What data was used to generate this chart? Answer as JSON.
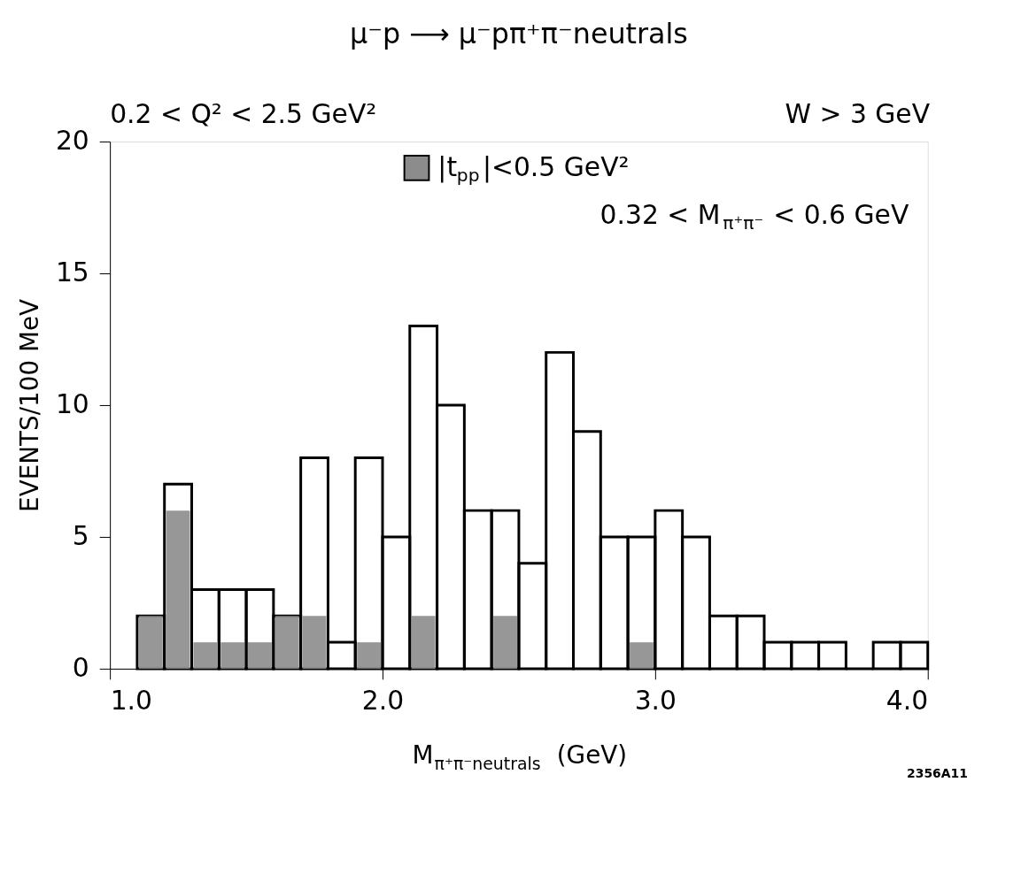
{
  "chart_data": {
    "type": "histogram",
    "title": "μ⁻p ⟶ μ⁻pπ⁺π⁻neutrals",
    "subtitle": "0.2 < Q² < 2.5 GeV²",
    "xlabel": "M$_{π⁺π⁻neutrals}$ (GeV)",
    "ylabel": "EVENTS/100 MeV",
    "bins": [
      1.1,
      1.2,
      1.3,
      1.4,
      1.5,
      1.6,
      1.7,
      1.8,
      1.9,
      2.0,
      2.1,
      2.2,
      2.3,
      2.4,
      2.5,
      2.6,
      2.7,
      2.8,
      2.9,
      3.0,
      3.1,
      3.2,
      3.3,
      3.4,
      3.5,
      3.6,
      3.7,
      3.8,
      3.9,
      4.0
    ],
    "series": [
      {
        "color": "#000000",
        "values": [
          2,
          7,
          3,
          3,
          3,
          2,
          8,
          1,
          8,
          5,
          13,
          10,
          6,
          6,
          4,
          12,
          9,
          5,
          5,
          6,
          5,
          2,
          2,
          1,
          1,
          1,
          0,
          1,
          1
        ]
      },
      {
        "name": "|t$_{pp}$|<0.5 GeV²",
        "color": "#8c8c8c",
        "values": [
          2,
          6,
          1,
          1,
          1,
          2,
          2,
          0,
          1,
          0,
          2,
          0,
          0,
          2,
          0,
          0,
          0,
          0,
          1,
          0,
          0,
          0,
          0,
          0,
          0,
          0,
          0,
          0,
          0
        ]
      }
    ],
    "annotations": [
      "W > 3 GeV",
      "0.32 < M$_{π⁺π⁻}$ < 0.6 GeV",
      "2356A11"
    ],
    "xlim": [
      1.0,
      4.0
    ],
    "xticks": [
      {
        "value": 1,
        "label": "1.0"
      },
      {
        "value": 2,
        "label": "2.0"
      },
      {
        "value": 3,
        "label": "3.0"
      },
      {
        "value": 4,
        "label": "4.0"
      }
    ],
    "ylim": [
      0,
      20
    ],
    "yticks": [
      0,
      5,
      10,
      15,
      20
    ],
    "grid": false,
    "legend": "top"
  }
}
